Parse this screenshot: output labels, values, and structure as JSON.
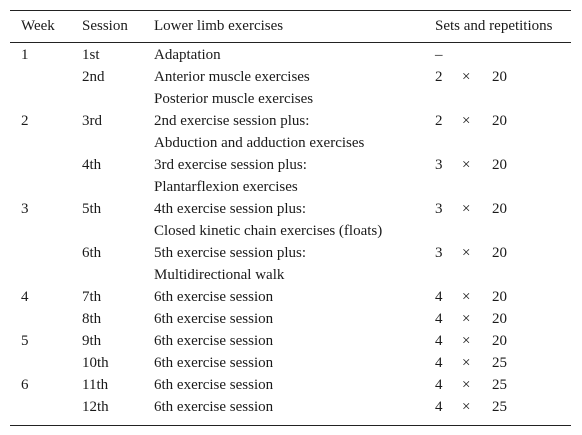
{
  "table": {
    "headers": {
      "week": "Week",
      "session": "Session",
      "exercises": "Lower limb exercises",
      "sets_reps": "Sets and repetitions"
    },
    "rows": [
      {
        "week": "1",
        "session": "1st",
        "exercise": "Adaptation",
        "sets": "–",
        "times": "",
        "reps": ""
      },
      {
        "week": "",
        "session": "2nd",
        "exercise": "Anterior muscle exercises",
        "sets": "2",
        "times": "×",
        "reps": "20"
      },
      {
        "week": "",
        "session": "",
        "exercise": "Posterior muscle exercises",
        "sets": "",
        "times": "",
        "reps": ""
      },
      {
        "week": "2",
        "session": "3rd",
        "exercise": "2nd exercise session plus:",
        "sets": "2",
        "times": "×",
        "reps": "20"
      },
      {
        "week": "",
        "session": "",
        "exercise": "Abduction and adduction exercises",
        "sets": "",
        "times": "",
        "reps": ""
      },
      {
        "week": "",
        "session": "4th",
        "exercise": "3rd exercise session plus:",
        "sets": "3",
        "times": "×",
        "reps": "20"
      },
      {
        "week": "",
        "session": "",
        "exercise": "Plantarflexion exercises",
        "sets": "",
        "times": "",
        "reps": ""
      },
      {
        "week": "3",
        "session": "5th",
        "exercise": "4th exercise session plus:",
        "sets": "3",
        "times": "×",
        "reps": "20"
      },
      {
        "week": "",
        "session": "",
        "exercise": "Closed kinetic chain exercises (floats)",
        "sets": "",
        "times": "",
        "reps": ""
      },
      {
        "week": "",
        "session": "6th",
        "exercise": "5th exercise session plus:",
        "sets": "3",
        "times": "×",
        "reps": "20"
      },
      {
        "week": "",
        "session": "",
        "exercise": "Multidirectional walk",
        "sets": "",
        "times": "",
        "reps": ""
      },
      {
        "week": "4",
        "session": "7th",
        "exercise": "6th exercise session",
        "sets": "4",
        "times": "×",
        "reps": "20"
      },
      {
        "week": "",
        "session": "8th",
        "exercise": "6th exercise session",
        "sets": "4",
        "times": "×",
        "reps": "20"
      },
      {
        "week": "5",
        "session": "9th",
        "exercise": "6th exercise session",
        "sets": "4",
        "times": "×",
        "reps": "20"
      },
      {
        "week": "",
        "session": "10th",
        "exercise": "6th exercise session",
        "sets": "4",
        "times": "×",
        "reps": "25"
      },
      {
        "week": "6",
        "session": "11th",
        "exercise": "6th exercise session",
        "sets": "4",
        "times": "×",
        "reps": "25"
      },
      {
        "week": "",
        "session": "12th",
        "exercise": "6th exercise session",
        "sets": "4",
        "times": "×",
        "reps": "25"
      }
    ]
  }
}
